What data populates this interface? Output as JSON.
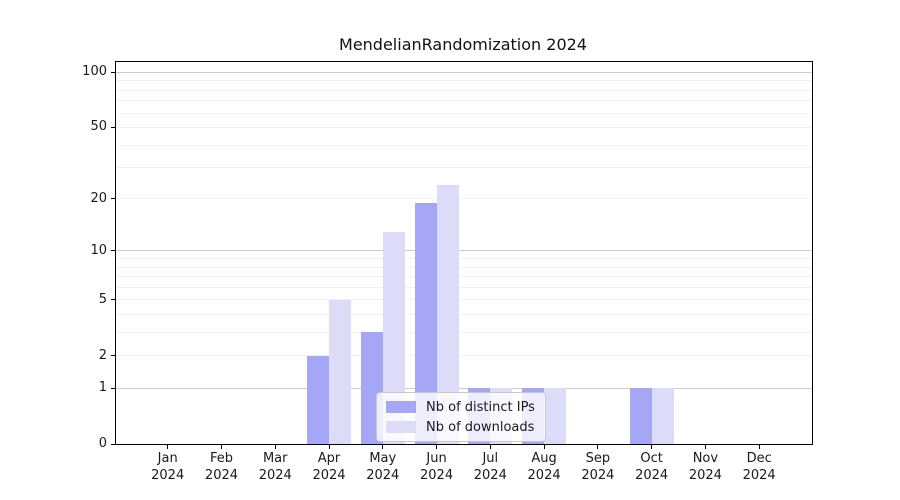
{
  "chart_data": {
    "type": "bar",
    "title": "MendelianRandomization 2024",
    "categories": [
      "Jan 2024",
      "Feb 2024",
      "Mar 2024",
      "Apr 2024",
      "May 2024",
      "Jun 2024",
      "Jul 2024",
      "Aug 2024",
      "Sep 2024",
      "Oct 2024",
      "Nov 2024",
      "Dec 2024"
    ],
    "series": [
      {
        "name": "Nb of distinct IPs",
        "color": "#a6a6f7",
        "values": [
          0,
          0,
          0,
          2,
          3,
          19,
          1,
          1,
          0,
          1,
          0,
          0
        ]
      },
      {
        "name": "Nb of downloads",
        "color": "#dcdcf9",
        "values": [
          0,
          0,
          0,
          5,
          13,
          24,
          1,
          1,
          0,
          1,
          0,
          0
        ]
      }
    ],
    "yscale": "log1p",
    "yticks": [
      0,
      1,
      2,
      5,
      10,
      20,
      50,
      100
    ],
    "ylim": [
      0,
      114
    ],
    "xlabel": "",
    "ylabel": "",
    "grid": "horizontal, log minor gridlines, major lines at 1/10/100",
    "legend_position": "lower center inside plot"
  },
  "style_colors": {
    "bar_series_1": "#a6a6f7",
    "bar_series_2": "#dcdcf9",
    "grid_minor": "#f0f0f0",
    "grid_major": "#cccccc",
    "axis": "#000000",
    "legend_border": "#c8c8c8",
    "text": "#1a1a1a"
  }
}
